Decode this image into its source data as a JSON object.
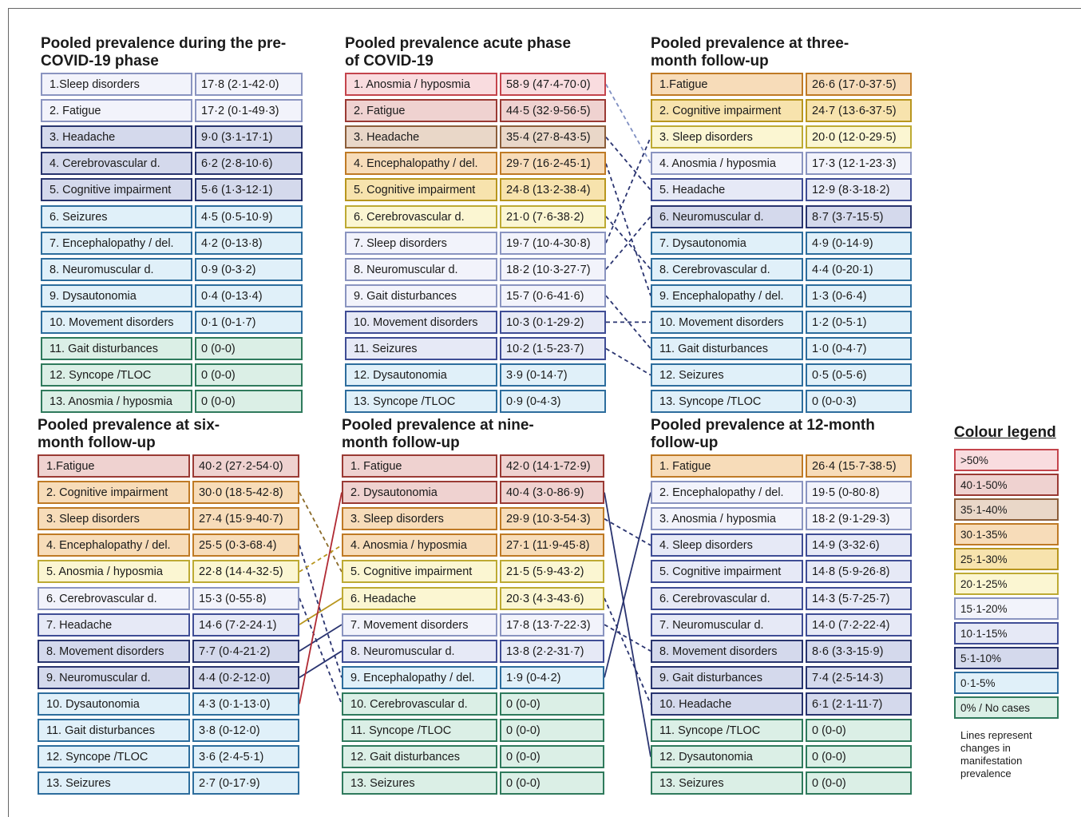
{
  "colors": {
    "c50": {
      "fill": "#f9dcdf",
      "border": "#c4444c"
    },
    "c40": {
      "fill": "#efd2d0",
      "border": "#9a3a34"
    },
    "c35": {
      "fill": "#e9d7c8",
      "border": "#8c5e3a"
    },
    "c30": {
      "fill": "#f7dcb9",
      "border": "#bf7a25"
    },
    "c25": {
      "fill": "#f7e3ad",
      "border": "#b8961e"
    },
    "c20": {
      "fill": "#fbf6d2",
      "border": "#bdaa33"
    },
    "c15": {
      "fill": "#f2f3fb",
      "border": "#8a94c0"
    },
    "c10": {
      "fill": "#e6e9f6",
      "border": "#3f4d95"
    },
    "c5": {
      "fill": "#d4d9ec",
      "border": "#28346e"
    },
    "c0": {
      "fill": "#e0f0f9",
      "border": "#2d6d9d"
    },
    "cNone": {
      "fill": "#dbefe6",
      "border": "#2f7a5c"
    }
  },
  "panels": [
    {
      "title": "Pooled prevalence during the pre-\nCOVID-19 phase",
      "rows": [
        {
          "label": "1.Sleep disorders",
          "value": "17·8 (2·1-42·0)",
          "color": "c15"
        },
        {
          "label": "2. Fatigue",
          "value": "17·2 (0·1-49·3)",
          "color": "c15"
        },
        {
          "label": "3. Headache",
          "value": "9·0 (3·1-17·1)",
          "color": "c5"
        },
        {
          "label": "4. Cerebrovascular d.",
          "value": "6·2 (2·8-10·6)",
          "color": "c5"
        },
        {
          "label": "5. Cognitive impairment",
          "value": "5·6 (1·3-12·1)",
          "color": "c5"
        },
        {
          "label": "6. Seizures",
          "value": "4·5 (0·5-10·9)",
          "color": "c0"
        },
        {
          "label": "7. Encephalopathy / del.",
          "value": "4·2 (0-13·8)",
          "color": "c0"
        },
        {
          "label": "8. Neuromuscular d.",
          "value": "0·9 (0-3·2)",
          "color": "c0"
        },
        {
          "label": "9. Dysautonomia",
          "value": "0·4 (0-13·4)",
          "color": "c0"
        },
        {
          "label": "10. Movement disorders",
          "value": "0·1 (0-1·7)",
          "color": "c0"
        },
        {
          "label": "11. Gait disturbances",
          "value": "0 (0-0)",
          "color": "cNone"
        },
        {
          "label": "12. Syncope /TLOC",
          "value": "0 (0-0)",
          "color": "cNone"
        },
        {
          "label": "13. Anosmia / hyposmia",
          "value": "0 (0-0)",
          "color": "cNone"
        }
      ]
    },
    {
      "title": "Pooled prevalence acute phase\nof COVID-19",
      "rows": [
        {
          "label": "1. Anosmia / hyposmia",
          "value": "58·9 (47·4-70·0)",
          "color": "c50"
        },
        {
          "label": "2. Fatigue",
          "value": "44·5 (32·9-56·5)",
          "color": "c40"
        },
        {
          "label": "3. Headache",
          "value": "35·4 (27·8-43·5)",
          "color": "c35"
        },
        {
          "label": "4. Encephalopathy / del.",
          "value": "29·7 (16·2-45·1)",
          "color": "c30"
        },
        {
          "label": "5. Cognitive impairment",
          "value": "24·8 (13·2-38·4)",
          "color": "c25"
        },
        {
          "label": "6. Cerebrovascular d.",
          "value": "21·0 (7·6-38·2)",
          "color": "c20"
        },
        {
          "label": "7. Sleep disorders",
          "value": "19·7 (10·4-30·8)",
          "color": "c15"
        },
        {
          "label": "8. Neuromuscular d.",
          "value": "18·2 (10·3-27·7)",
          "color": "c15"
        },
        {
          "label": "9. Gait disturbances",
          "value": "15·7 (0·6-41·6)",
          "color": "c15"
        },
        {
          "label": "10. Movement disorders",
          "value": "10·3 (0·1-29·2)",
          "color": "c10"
        },
        {
          "label": "11. Seizures",
          "value": "10·2 (1·5-23·7)",
          "color": "c10"
        },
        {
          "label": "12. Dysautonomia",
          "value": "3·9 (0-14·7)",
          "color": "c0"
        },
        {
          "label": "13. Syncope /TLOC",
          "value": "0·9 (0-4·3)",
          "color": "c0"
        }
      ]
    },
    {
      "title": "Pooled prevalence at three-\nmonth follow-up",
      "rows": [
        {
          "label": "1.Fatigue",
          "value": "26·6 (17·0-37·5)",
          "color": "c30"
        },
        {
          "label": "2. Cognitive impairment",
          "value": "24·7 (13·6-37·5)",
          "color": "c25"
        },
        {
          "label": "3. Sleep disorders",
          "value": "20·0 (12·0-29·5)",
          "color": "c20"
        },
        {
          "label": "4. Anosmia / hyposmia",
          "value": "17·3 (12·1-23·3)",
          "color": "c15"
        },
        {
          "label": "5. Headache",
          "value": "12·9 (8·3-18·2)",
          "color": "c10"
        },
        {
          "label": "6. Neuromuscular d.",
          "value": "8·7 (3·7-15·5)",
          "color": "c5"
        },
        {
          "label": "7. Dysautonomia",
          "value": "4·9 (0-14·9)",
          "color": "c0"
        },
        {
          "label": "8. Cerebrovascular d.",
          "value": "4·4 (0-20·1)",
          "color": "c0"
        },
        {
          "label": "9. Encephalopathy / del.",
          "value": "1·3 (0-6·4)",
          "color": "c0"
        },
        {
          "label": "10. Movement disorders",
          "value": "1·2 (0-5·1)",
          "color": "c0"
        },
        {
          "label": "11. Gait disturbances",
          "value": "1·0 (0-4·7)",
          "color": "c0"
        },
        {
          "label": "12. Seizures",
          "value": "0·5 (0-5·6)",
          "color": "c0"
        },
        {
          "label": "13. Syncope /TLOC",
          "value": "0 (0-0·3)",
          "color": "c0"
        }
      ]
    },
    {
      "title": "Pooled prevalence at six-\nmonth follow-up",
      "rows": [
        {
          "label": "1.Fatigue",
          "value": "40·2 (27·2-54·0)",
          "color": "c40"
        },
        {
          "label": "2. Cognitive impairment",
          "value": "30·0 (18·5-42·8)",
          "color": "c30"
        },
        {
          "label": "3.  Sleep disorders",
          "value": "27·4 (15·9-40·7)",
          "color": "c30"
        },
        {
          "label": "4. Encephalopathy / del.",
          "value": "25·5 (0·3-68·4)",
          "color": "c30"
        },
        {
          "label": "5. Anosmia / hyposmia",
          "value": "22·8 (14·4-32·5)",
          "color": "c20"
        },
        {
          "label": "6. Cerebrovascular d.",
          "value": "15·3 (0-55·8)",
          "color": "c15"
        },
        {
          "label": "7. Headache",
          "value": "14·6 (7·2-24·1)",
          "color": "c10"
        },
        {
          "label": "8. Movement disorders",
          "value": "7·7 (0·4-21·2)",
          "color": "c5"
        },
        {
          "label": "9. Neuromuscular d.",
          "value": "4·4 (0·2-12·0)",
          "color": "c5"
        },
        {
          "label": "10. Dysautonomia",
          "value": "4·3 (0·1-13·0)",
          "color": "c0"
        },
        {
          "label": "11. Gait disturbances",
          "value": "3·8 (0-12·0)",
          "color": "c0"
        },
        {
          "label": "12. Syncope /TLOC",
          "value": "3·6 (2·4-5·1)",
          "color": "c0"
        },
        {
          "label": "13. Seizures",
          "value": "2·7 (0-17·9)",
          "color": "c0"
        }
      ]
    },
    {
      "title": "Pooled prevalence at nine-\nmonth follow-up",
      "rows": [
        {
          "label": "1. Fatigue",
          "value": "42·0 (14·1-72·9)",
          "color": "c40"
        },
        {
          "label": "2. Dysautonomia",
          "value": "40·4 (3·0-86·9)",
          "color": "c40"
        },
        {
          "label": "3.  Sleep disorders",
          "value": "29·9 (10·3-54·3)",
          "color": "c30"
        },
        {
          "label": "4. Anosmia / hyposmia",
          "value": "27·1 (11·9-45·8)",
          "color": "c30"
        },
        {
          "label": "5. Cognitive impairment",
          "value": "21·5 (5·9-43·2)",
          "color": "c20"
        },
        {
          "label": "6. Headache",
          "value": "20·3 (4·3-43·6)",
          "color": "c20"
        },
        {
          "label": "7. Movement disorders",
          "value": "17·8 (13·7-22·3)",
          "color": "c15"
        },
        {
          "label": "8. Neuromuscular d.",
          "value": "13·8 (2·2-31·7)",
          "color": "c10"
        },
        {
          "label": "9. Encephalopathy / del.",
          "value": "1·9 (0-4·2)",
          "color": "c0"
        },
        {
          "label": "10. Cerebrovascular d.",
          "value": "0 (0-0)",
          "color": "cNone"
        },
        {
          "label": "11. Syncope /TLOC",
          "value": "0 (0-0)",
          "color": "cNone"
        },
        {
          "label": "12. Gait disturbances",
          "value": "0 (0-0)",
          "color": "cNone"
        },
        {
          "label": "13. Seizures",
          "value": "0 (0-0)",
          "color": "cNone"
        }
      ]
    },
    {
      "title": "Pooled prevalence at 12-month\nfollow-up",
      "rows": [
        {
          "label": "1. Fatigue",
          "value": "26·4 (15·7-38·5)",
          "color": "c30"
        },
        {
          "label": "2. Encephalopathy / del.",
          "value": "19·5 (0-80·8)",
          "color": "c15"
        },
        {
          "label": "3. Anosmia / hyposmia",
          "value": "18·2 (9·1-29·3)",
          "color": "c15"
        },
        {
          "label": "4. Sleep disorders",
          "value": "14·9 (3-32·6)",
          "color": "c10"
        },
        {
          "label": "5. Cognitive impairment",
          "value": "14·8 (5·9-26·8)",
          "color": "c10"
        },
        {
          "label": "6. Cerebrovascular d.",
          "value": "14·3 (5·7-25·7)",
          "color": "c10"
        },
        {
          "label": "7. Neuromuscular d.",
          "value": "14·0 (7·2-22·4)",
          "color": "c10"
        },
        {
          "label": "8. Movement disorders",
          "value": "8·6 (3·3-15·9)",
          "color": "c5"
        },
        {
          "label": "9. Gait disturbances",
          "value": "7·4 (2·5-14·3)",
          "color": "c5"
        },
        {
          "label": "10. Headache",
          "value": "6·1 (2·1-11·7)",
          "color": "c5"
        },
        {
          "label": "11. Syncope /TLOC",
          "value": "0 (0-0)",
          "color": "cNone"
        },
        {
          "label": "12. Dysautonomia",
          "value": "0 (0-0)",
          "color": "cNone"
        },
        {
          "label": "13. Seizures",
          "value": "0 (0-0)",
          "color": "cNone"
        }
      ]
    }
  ],
  "legend": {
    "title": "Colour legend",
    "items": [
      {
        "label": ">50%",
        "color": "c50"
      },
      {
        "label": "40·1-50%",
        "color": "c40"
      },
      {
        "label": "35·1-40%",
        "color": "c35"
      },
      {
        "label": "30·1-35%",
        "color": "c30"
      },
      {
        "label": "25·1-30%",
        "color": "c25"
      },
      {
        "label": "20·1-25%",
        "color": "c20"
      },
      {
        "label": "15·1-20%",
        "color": "c15"
      },
      {
        "label": "10·1-15%",
        "color": "c10"
      },
      {
        "label": "5·1-10%",
        "color": "c5"
      },
      {
        "label": "0·1-5%",
        "color": "c0"
      },
      {
        "label": "0% / No cases",
        "color": "cNone"
      }
    ],
    "note": "Lines represent\nchanges in\nmanifestation\nprevalence"
  },
  "connectors": [
    {
      "from": [
        1,
        0
      ],
      "to": [
        2,
        3
      ],
      "color": "#7f8fc2",
      "dashed": true
    },
    {
      "from": [
        1,
        2
      ],
      "to": [
        2,
        4
      ],
      "color": "#2a3470",
      "dashed": true
    },
    {
      "from": [
        1,
        3
      ],
      "to": [
        2,
        8
      ],
      "color": "#2a3470",
      "dashed": true
    },
    {
      "from": [
        1,
        5
      ],
      "to": [
        2,
        7
      ],
      "color": "#2a3470",
      "dashed": true
    },
    {
      "from": [
        1,
        6
      ],
      "to": [
        2,
        2
      ],
      "color": "#2a3470",
      "dashed": true
    },
    {
      "from": [
        1,
        7
      ],
      "to": [
        2,
        5
      ],
      "color": "#2a3470",
      "dashed": true
    },
    {
      "from": [
        1,
        8
      ],
      "to": [
        2,
        10
      ],
      "color": "#2a3470",
      "dashed": true
    },
    {
      "from": [
        1,
        9
      ],
      "to": [
        2,
        9
      ],
      "color": "#2a3470",
      "dashed": true
    },
    {
      "from": [
        1,
        10
      ],
      "to": [
        2,
        11
      ],
      "color": "#2a3470",
      "dashed": true
    },
    {
      "from": [
        3,
        1
      ],
      "to": [
        4,
        4
      ],
      "color": "#8a6a28",
      "dashed": true
    },
    {
      "from": [
        3,
        3
      ],
      "to": [
        4,
        8
      ],
      "color": "#2a3470",
      "dashed": true
    },
    {
      "from": [
        3,
        4
      ],
      "to": [
        4,
        3
      ],
      "color": "#b8961e",
      "dashed": true
    },
    {
      "from": [
        3,
        5
      ],
      "to": [
        4,
        9
      ],
      "color": "#2a3470",
      "dashed": true
    },
    {
      "from": [
        3,
        6
      ],
      "to": [
        4,
        5
      ],
      "color": "#b8961e",
      "dashed": false
    },
    {
      "from": [
        3,
        7
      ],
      "to": [
        4,
        6
      ],
      "color": "#2a3470",
      "dashed": false
    },
    {
      "from": [
        3,
        8
      ],
      "to": [
        4,
        7
      ],
      "color": "#2a3470",
      "dashed": false
    },
    {
      "from": [
        3,
        9
      ],
      "to": [
        4,
        1
      ],
      "color": "#b02a33",
      "dashed": false
    },
    {
      "from": [
        4,
        1
      ],
      "to": [
        5,
        11
      ],
      "color": "#2a3470",
      "dashed": false
    },
    {
      "from": [
        4,
        2
      ],
      "to": [
        5,
        3
      ],
      "color": "#2a3470",
      "dashed": true
    },
    {
      "from": [
        4,
        5
      ],
      "to": [
        5,
        9
      ],
      "color": "#2a3470",
      "dashed": true
    },
    {
      "from": [
        4,
        6
      ],
      "to": [
        5,
        7
      ],
      "color": "#2a3470",
      "dashed": true
    },
    {
      "from": [
        4,
        8
      ],
      "to": [
        5,
        1
      ],
      "color": "#2a3470",
      "dashed": false
    }
  ]
}
